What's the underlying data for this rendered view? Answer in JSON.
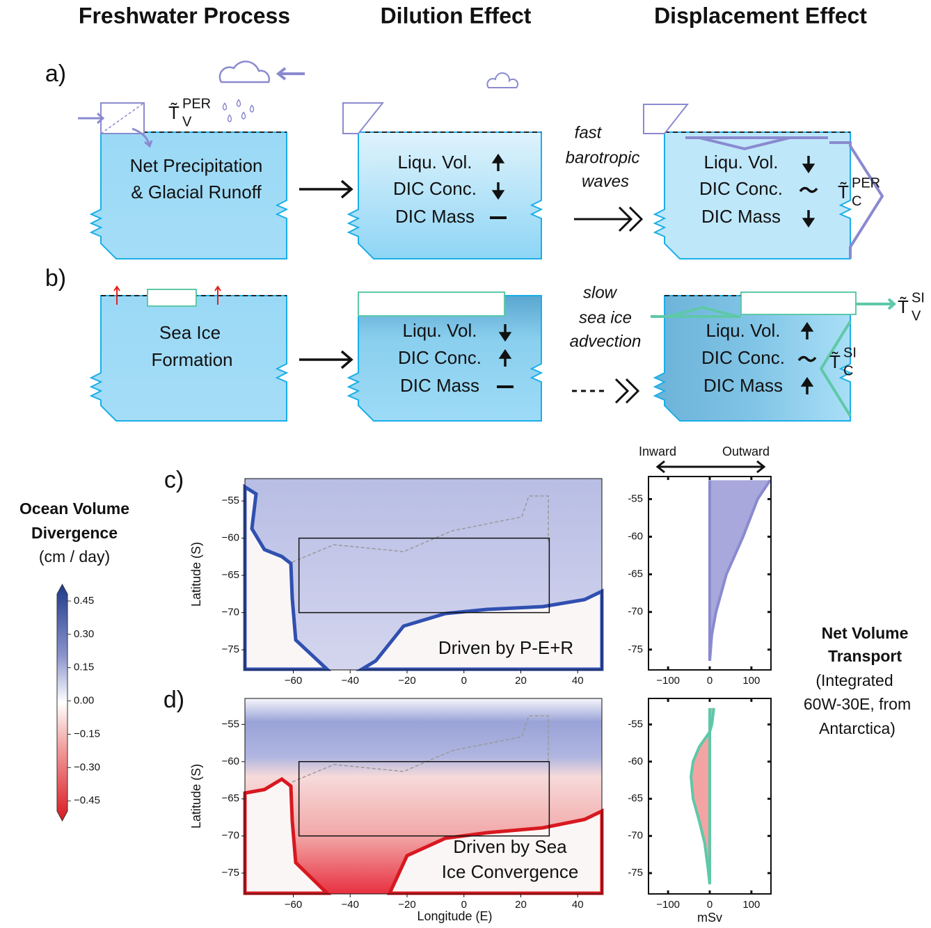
{
  "headers": [
    "Freshwater Process",
    "Dilution Effect",
    "Displacement Effect"
  ],
  "panel_a": {
    "label": "a)",
    "process": [
      "Net Precipitation",
      "& Glacial Runoff"
    ],
    "process_flux": {
      "symbol": "T̃",
      "sup": "PER",
      "sub": "V"
    },
    "dilution": [
      "Liqu. Vol.",
      "DIC Conc.",
      "DIC Mass"
    ],
    "transport": [
      "fast",
      "barotropic",
      "waves"
    ],
    "displacement": [
      "Liqu. Vol.",
      "DIC Conc.",
      "DIC Mass"
    ],
    "displacement_flux": {
      "symbol": "T̃",
      "sup": "PER",
      "sub": "C"
    }
  },
  "panel_b": {
    "label": "b)",
    "process": [
      "Sea Ice",
      "Formation"
    ],
    "dilution": [
      "Liqu. Vol.",
      "DIC Conc.",
      "DIC Mass"
    ],
    "transport": [
      "slow",
      "sea ice",
      "advection"
    ],
    "displacement": [
      "Liqu. Vol.",
      "DIC Conc.",
      "DIC Mass"
    ],
    "export_flux": {
      "symbol": "T̃",
      "sup": "SI",
      "sub": "V"
    },
    "displacement_flux": {
      "symbol": "T̃",
      "sup": "SI",
      "sub": "C"
    }
  },
  "colorbar": {
    "title": [
      "Ocean Volume",
      "Divergence"
    ],
    "units": "(cm / day)",
    "lim": [
      -0.54,
      0.525
    ],
    "ticks": [
      0.45,
      {
        "value": 0.3,
        "label": "0.30"
      },
      0.15,
      {
        "value": 0,
        "label": "0.00"
      },
      {
        "value": -0.15,
        "label": "−0.15"
      },
      {
        "value": -0.3,
        "label": "−0.30"
      },
      {
        "value": -0.45,
        "label": "−0.45"
      }
    ]
  },
  "side_label": {
    "title": [
      "Net Volume",
      "Transport"
    ],
    "note": [
      "(Integrated",
      "60W-30E, from",
      "Antarctica)"
    ]
  },
  "chart_data": [
    {
      "type": "map",
      "panel": "c)",
      "annotation": [
        "Driven by P-E+R"
      ],
      "ylabel": "Latitude (S)",
      "xlim": [
        -77,
        48.5
      ],
      "ylim": [
        -77.7,
        -52
      ],
      "xticks": [
        {
          "value": -60,
          "label": "−60"
        },
        {
          "value": -40,
          "label": "−40"
        },
        {
          "value": -20,
          "label": "−20"
        },
        0,
        20,
        40
      ],
      "yticks": [
        {
          "value": -55,
          "label": "−55"
        },
        {
          "value": -60,
          "label": "−60"
        },
        {
          "value": -65,
          "label": "−65"
        },
        {
          "value": -70,
          "label": "−70"
        },
        {
          "value": -75,
          "label": "−75"
        }
      ],
      "region": {
        "lon": [
          -58,
          30
        ],
        "lat": [
          -60,
          -70
        ]
      }
    },
    {
      "type": "profile",
      "header": [
        "Inward",
        "Outward"
      ],
      "xlim": [
        -147,
        147
      ],
      "ylim": [
        -77.7,
        -52
      ],
      "xticks": [
        {
          "value": -100,
          "label": "−100"
        },
        0,
        100
      ],
      "yticks": [
        -55,
        -60,
        -65,
        -70,
        -75
      ],
      "series": [
        {
          "color": "#8a8ad0",
          "fill": "#a8a8dc",
          "values": [
            145,
            115,
            80,
            40,
            15,
            5,
            0
          ],
          "lat": [
            -52.5,
            -55,
            -60,
            -65,
            -70,
            -73,
            -76.5
          ]
        }
      ]
    },
    {
      "type": "map",
      "panel": "d)",
      "annotation": [
        "Driven by Sea",
        "Ice Convergence"
      ],
      "ylabel": "Latitude (S)",
      "xlabel": "Longitude (E)",
      "xlim": [
        -77,
        48.5
      ],
      "ylim": [
        -77.8,
        -51.5
      ],
      "xticks": [
        {
          "value": -60,
          "label": "−60"
        },
        {
          "value": -40,
          "label": "−40"
        },
        {
          "value": -20,
          "label": "−20"
        },
        0,
        20,
        40
      ],
      "yticks": [
        {
          "value": -55,
          "label": "−55"
        },
        {
          "value": -60,
          "label": "−60"
        },
        {
          "value": -65,
          "label": "−65"
        },
        {
          "value": -70,
          "label": "−70"
        },
        {
          "value": -75,
          "label": "−75"
        }
      ],
      "region": {
        "lon": [
          -58,
          30
        ],
        "lat": [
          -60,
          -70
        ]
      }
    },
    {
      "type": "profile",
      "xlabel": "mSv",
      "xlim": [
        -147,
        147
      ],
      "ylim": [
        -77.8,
        -51.5
      ],
      "xticks": [
        {
          "value": -100,
          "label": "−100"
        },
        0,
        100
      ],
      "yticks": [
        -55,
        -60,
        -65,
        -70,
        -75
      ],
      "series": [
        {
          "color": "#5ec8a8",
          "fill": "#f4a3a3",
          "values": [
            10,
            5,
            0,
            -25,
            -40,
            -45,
            -40,
            -25,
            -12,
            -5,
            0
          ],
          "lat": [
            -52.8,
            -55,
            -56,
            -58,
            -60,
            -62,
            -65,
            -68,
            -71,
            -74,
            -76.5
          ]
        }
      ]
    }
  ]
}
